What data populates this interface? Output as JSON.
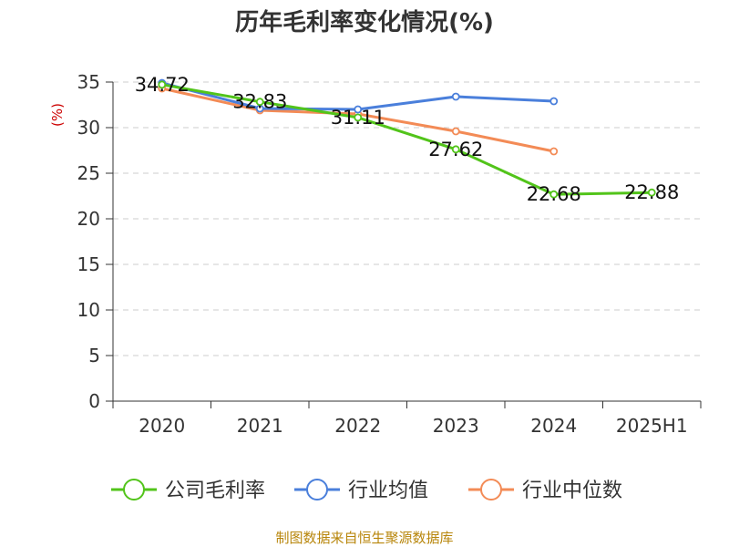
{
  "chart_data": {
    "type": "line",
    "title": "历年毛利率变化情况(%)",
    "ylabel": "(%)",
    "categories": [
      "2020",
      "2021",
      "2022",
      "2023",
      "2024",
      "2025H1"
    ],
    "ylim": [
      0,
      35
    ],
    "yticks": [
      0,
      5,
      10,
      15,
      20,
      25,
      30,
      35
    ],
    "grid": true,
    "legend_position": "bottom",
    "series": [
      {
        "name": "公司毛利率",
        "color": "#52c41a",
        "values": [
          34.72,
          32.83,
          31.11,
          27.62,
          22.68,
          22.88
        ],
        "labels": [
          "34.72",
          "32.83",
          "31.11",
          "27.62",
          "22.68",
          "22.88"
        ]
      },
      {
        "name": "行业均值",
        "color": "#4a7fdb",
        "values": [
          34.9,
          32.1,
          32.0,
          33.4,
          32.9,
          null
        ],
        "labels": []
      },
      {
        "name": "行业中位数",
        "color": "#f38b56",
        "values": [
          34.3,
          31.9,
          31.5,
          29.6,
          27.4,
          null
        ],
        "labels": []
      }
    ]
  },
  "source": "制图数据来自恒生聚源数据库"
}
